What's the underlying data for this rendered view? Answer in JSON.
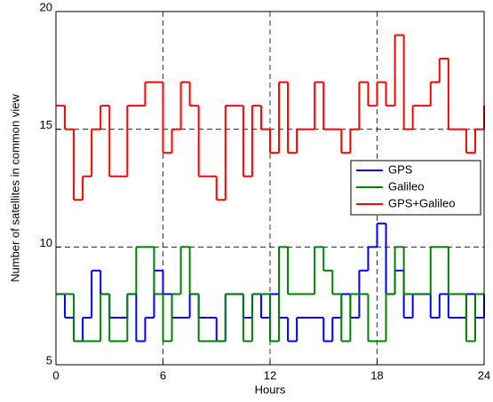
{
  "chart_data": {
    "type": "line",
    "drawstyle": "steps-post",
    "xlabel": "Hours",
    "ylabel": "Number of satellites in common view",
    "x": [
      0,
      0.5,
      1,
      1.5,
      2,
      2.5,
      3,
      3.5,
      4,
      4.5,
      5,
      5.5,
      6,
      6.5,
      7,
      7.5,
      8,
      8.5,
      9,
      9.5,
      10,
      10.5,
      11,
      11.5,
      12,
      12.5,
      13,
      13.5,
      14,
      14.5,
      15,
      15.5,
      16,
      16.5,
      17,
      17.5,
      18,
      18.5,
      19,
      19.5,
      20,
      20.5,
      21,
      21.5,
      22,
      22.5,
      23,
      23.5,
      24
    ],
    "series": [
      {
        "name": "GPS",
        "color": "#0000ff",
        "values": [
          8,
          7,
          6,
          7,
          9,
          8,
          7,
          7,
          8,
          6,
          7,
          9,
          8,
          7,
          7,
          8,
          7,
          7,
          6,
          8,
          8,
          7,
          8,
          7,
          8,
          7,
          6,
          7,
          7,
          7,
          6,
          7,
          8,
          7,
          9,
          10,
          11,
          8,
          9,
          7,
          8,
          8,
          7,
          8,
          7,
          7,
          8,
          7,
          8
        ]
      },
      {
        "name": "Galileo",
        "color": "#008000",
        "values": [
          8,
          8,
          6,
          6,
          6,
          8,
          6,
          6,
          8,
          10,
          10,
          8,
          6,
          8,
          10,
          8,
          6,
          6,
          6,
          8,
          8,
          6,
          8,
          8,
          6,
          10,
          8,
          8,
          8,
          10,
          9,
          8,
          6,
          8,
          8,
          6,
          6,
          8,
          10,
          8,
          8,
          8,
          10,
          10,
          8,
          8,
          6,
          8,
          8
        ]
      },
      {
        "name": "GPS+Galileo",
        "color": "#ff0000",
        "values": [
          16,
          15,
          12,
          13,
          15,
          16,
          13,
          13,
          16,
          16,
          17,
          17,
          14,
          15,
          17,
          16,
          13,
          13,
          12,
          16,
          16,
          13,
          16,
          15,
          14,
          17,
          14,
          15,
          15,
          17,
          15,
          15,
          14,
          15,
          17,
          16,
          17,
          16,
          19,
          15,
          16,
          16,
          17,
          18,
          15,
          15,
          14,
          15,
          16
        ]
      }
    ],
    "xlim": [
      0,
      24
    ],
    "xticks": [
      0,
      6,
      12,
      18,
      24
    ],
    "ylim": [
      5,
      20
    ],
    "yticks": [
      5,
      10,
      15,
      20
    ],
    "grid": true,
    "legend": "right"
  }
}
